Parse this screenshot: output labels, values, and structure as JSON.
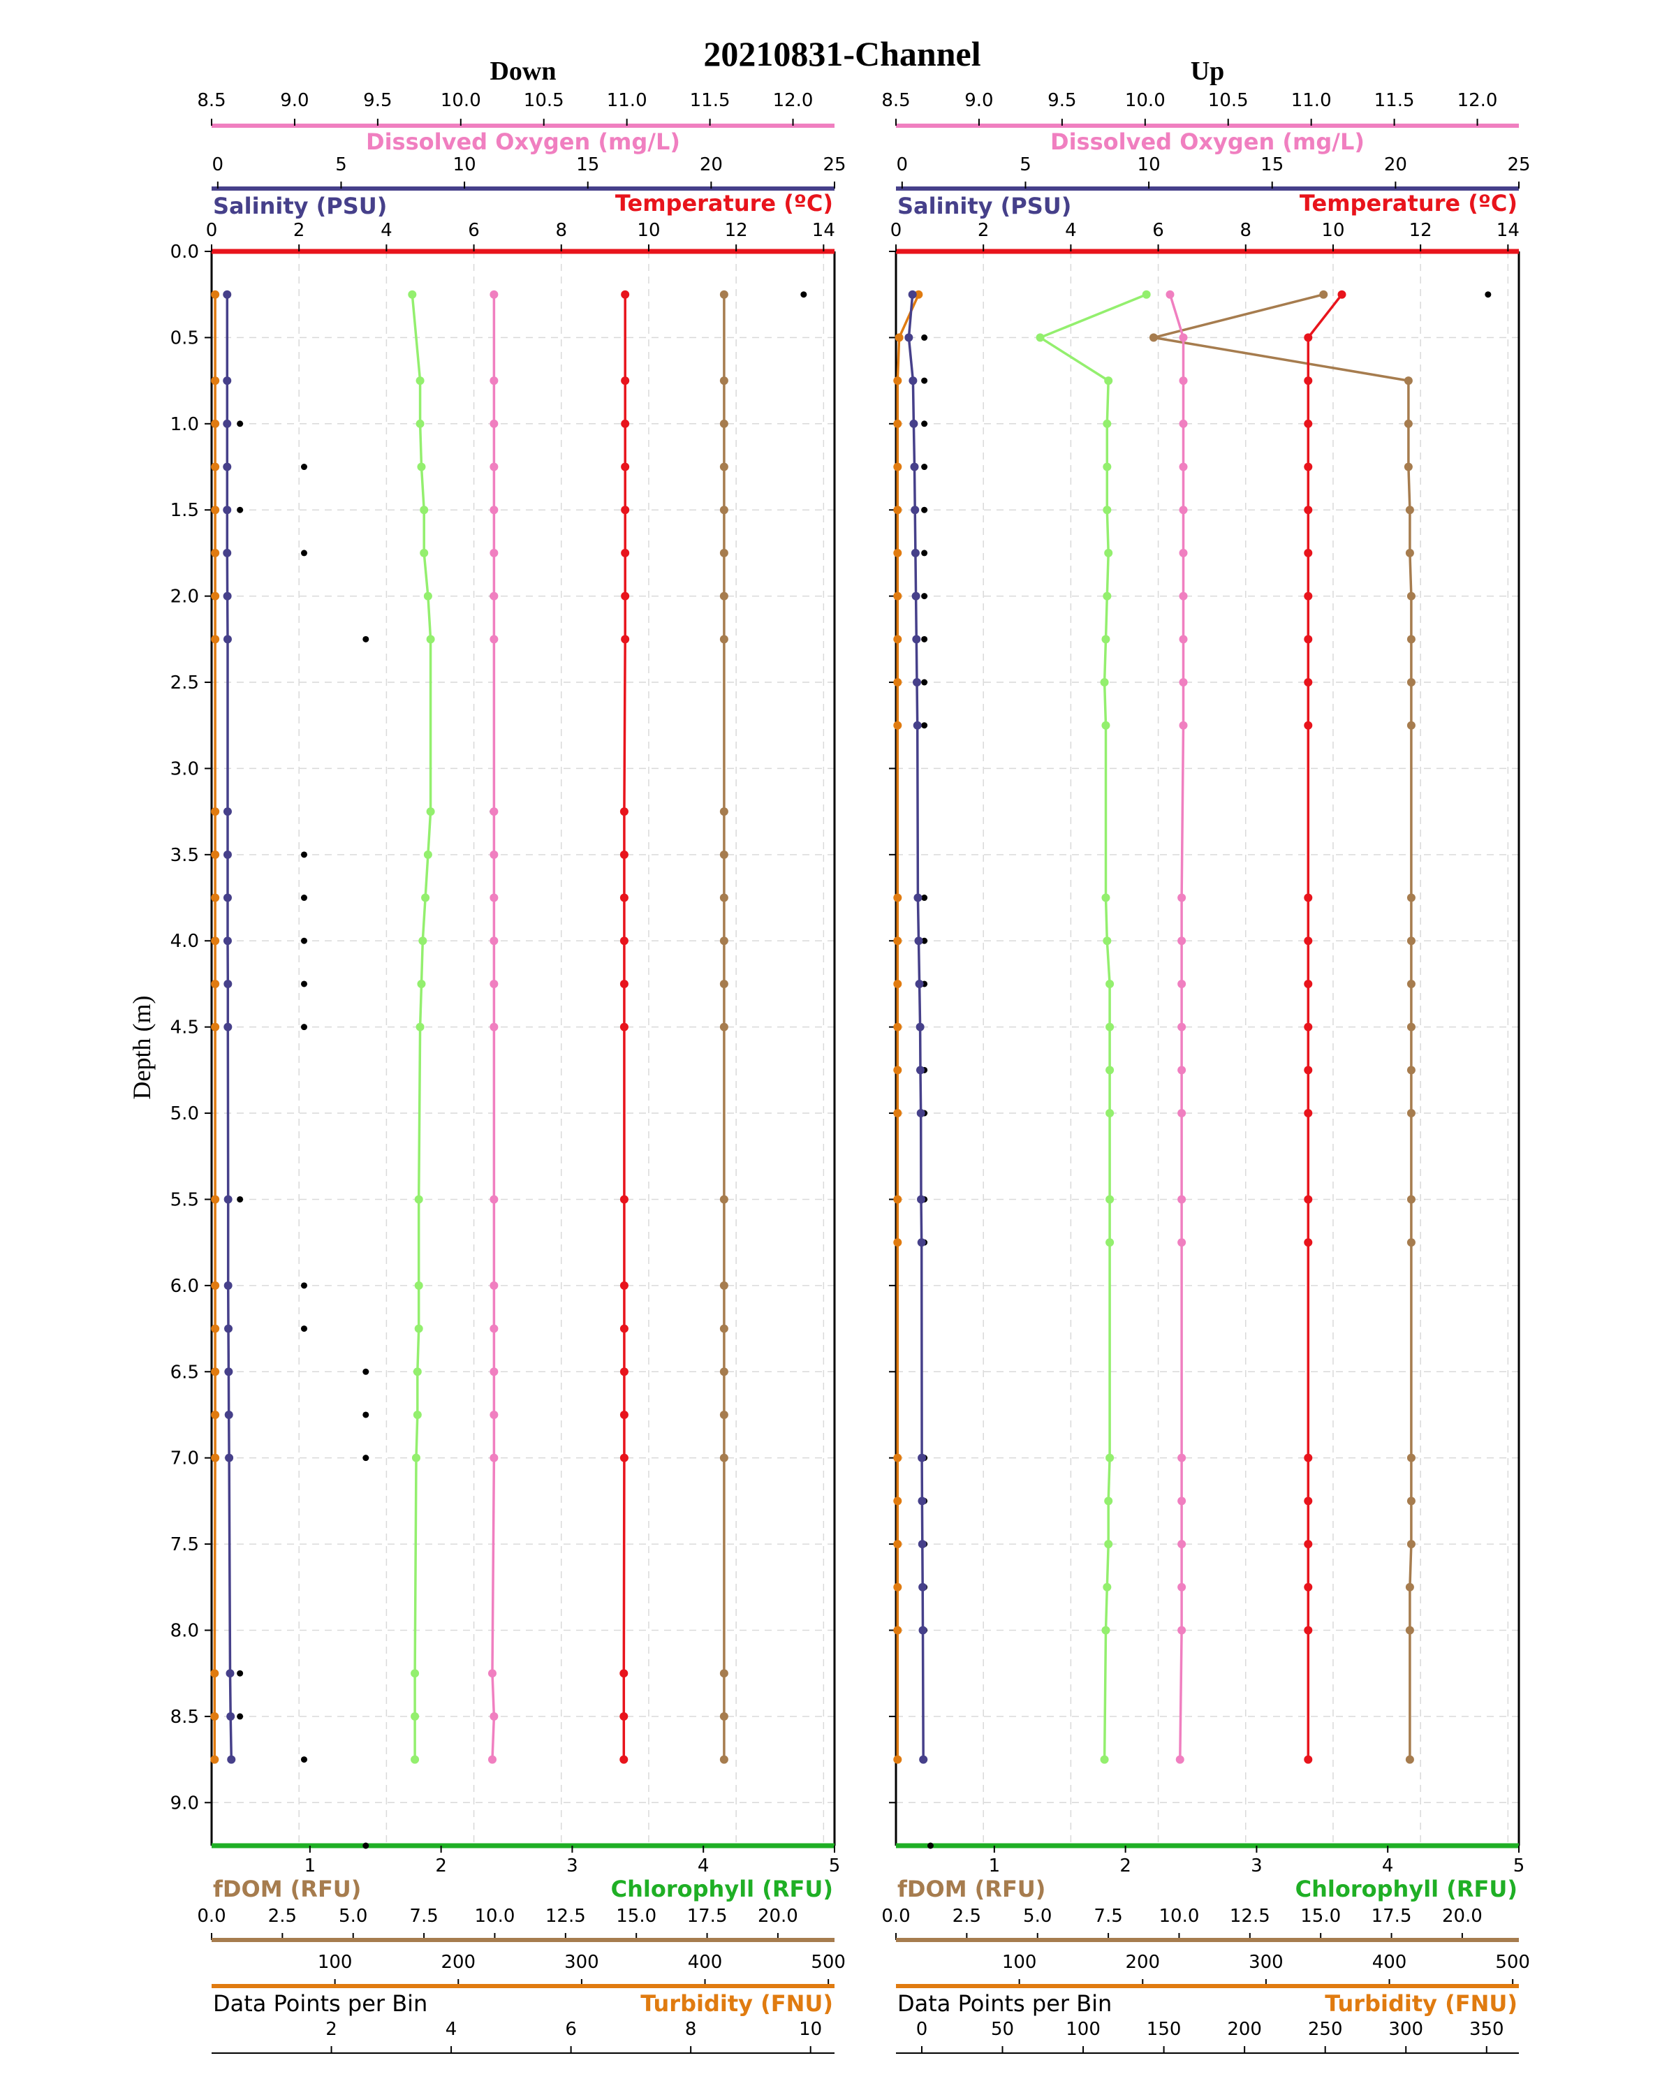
{
  "figure": {
    "title": "20210831-Channel",
    "ylabel": "Depth (m)"
  },
  "colors": {
    "temperature": "#e8141c",
    "salinity": "#46408a",
    "dissolved_oxygen": "#f07fc0",
    "chlorophyll": "#1faf25",
    "chlorophyll_line": "#93ef6e",
    "fdom": "#a67c4e",
    "turbidity": "#e07b10",
    "datapoints": "#000000",
    "grid": "#d9d9d9"
  },
  "chart_data": [
    {
      "type": "line",
      "title": "Down",
      "ylabel": "Depth (m)",
      "ylim": [
        9.25,
        0
      ],
      "yticks": [
        "0.0",
        "0.5",
        "1.0",
        "1.5",
        "2.0",
        "2.5",
        "3.0",
        "3.5",
        "4.0",
        "4.5",
        "5.0",
        "5.5",
        "6.0",
        "6.5",
        "7.0",
        "7.5",
        "8.0",
        "8.5",
        "9.0"
      ],
      "grid": true,
      "axes": {
        "dissolved_oxygen": {
          "label": "Dissolved Oxygen (mg/L)",
          "lim": [
            8.5,
            12.25
          ],
          "ticks": [
            "8.5",
            "9.0",
            "9.5",
            "10.0",
            "10.5",
            "11.0",
            "11.5",
            "12.0"
          ]
        },
        "salinity": {
          "label": "Salinity (PSU)",
          "lim": [
            -0.25,
            25
          ],
          "ticks": [
            "0",
            "5",
            "10",
            "15",
            "20",
            "25"
          ]
        },
        "temperature": {
          "label": "Temperature (ºC)",
          "lim": [
            0,
            14.25
          ],
          "ticks": [
            "0",
            "2",
            "4",
            "6",
            "8",
            "10",
            "12",
            "14"
          ]
        },
        "chlorophyll": {
          "label": "Chlorophyll (RFU)",
          "lim": [
            0.25,
            5
          ],
          "ticks": [
            "1",
            "2",
            "3",
            "4",
            "5"
          ]
        },
        "fdom": {
          "label": "fDOM (RFU)",
          "lim": [
            0,
            22
          ],
          "ticks": [
            "0.0",
            "2.5",
            "5.0",
            "7.5",
            "10.0",
            "12.5",
            "15.0",
            "17.5",
            "20.0"
          ]
        },
        "datapoints": {
          "label": "Data Points per Bin",
          "lim": [
            0,
            505
          ],
          "ticks": [
            "100",
            "200",
            "300",
            "400",
            "500"
          ]
        },
        "turbidity": {
          "label": "Turbidity (FNU)",
          "lim": [
            0,
            10.4
          ],
          "ticks": [
            "2",
            "4",
            "6",
            "8",
            "10"
          ]
        }
      },
      "depths": [
        0.25,
        0.75,
        1.0,
        1.25,
        1.5,
        1.75,
        2.0,
        2.25,
        3.25,
        3.5,
        3.75,
        4.0,
        4.25,
        4.5,
        5.5,
        6.0,
        6.25,
        6.5,
        6.75,
        7.0,
        8.25,
        8.5,
        8.75
      ],
      "series": {
        "temperature": [
          9.46,
          9.46,
          9.46,
          9.46,
          9.46,
          9.46,
          9.46,
          9.46,
          9.44,
          9.44,
          9.44,
          9.44,
          9.44,
          9.44,
          9.44,
          9.44,
          9.44,
          9.44,
          9.44,
          9.44,
          9.43,
          9.43,
          9.43
        ],
        "salinity": [
          0.38,
          0.38,
          0.38,
          0.38,
          0.38,
          0.38,
          0.39,
          0.4,
          0.4,
          0.4,
          0.4,
          0.4,
          0.41,
          0.41,
          0.42,
          0.42,
          0.43,
          0.44,
          0.45,
          0.46,
          0.5,
          0.52,
          0.55
        ],
        "dissolved_oxygen": [
          10.2,
          10.2,
          10.2,
          10.2,
          10.2,
          10.2,
          10.2,
          10.2,
          10.2,
          10.2,
          10.2,
          10.2,
          10.2,
          10.2,
          10.2,
          10.2,
          10.2,
          10.2,
          10.2,
          10.2,
          10.19,
          10.2,
          10.19
        ],
        "chlorophyll": [
          1.78,
          1.84,
          1.84,
          1.85,
          1.87,
          1.87,
          1.9,
          1.92,
          1.92,
          1.9,
          1.88,
          1.86,
          1.85,
          1.84,
          1.83,
          1.83,
          1.83,
          1.82,
          1.82,
          1.81,
          1.8,
          1.8,
          1.8
        ],
        "fdom": [
          18.1,
          18.1,
          18.1,
          18.1,
          18.1,
          18.1,
          18.1,
          18.1,
          18.1,
          18.1,
          18.1,
          18.1,
          18.1,
          18.1,
          18.1,
          18.1,
          18.1,
          18.1,
          18.1,
          18.1,
          18.1,
          18.1,
          18.1
        ],
        "turbidity": [
          0.06,
          0.06,
          0.06,
          0.06,
          0.06,
          0.06,
          0.06,
          0.06,
          0.06,
          0.06,
          0.06,
          0.06,
          0.06,
          0.06,
          0.06,
          0.06,
          0.06,
          0.06,
          0.06,
          0.06,
          0.05,
          0.05,
          0.05
        ]
      },
      "datapoints": {
        "depths": [
          0.25,
          1.0,
          1.25,
          1.5,
          1.75,
          2.0,
          2.25,
          3.25,
          3.5,
          3.75,
          4.0,
          4.25,
          4.5,
          5.5,
          6.0,
          6.25,
          6.5,
          6.75,
          7.0,
          8.25,
          8.5,
          8.75,
          9.25
        ],
        "values": [
          480,
          23,
          75,
          23,
          75,
          228,
          125,
          228,
          75,
          75,
          75,
          75,
          75,
          23,
          75,
          75,
          125,
          125,
          125,
          23,
          23,
          75,
          125
        ]
      }
    },
    {
      "type": "line",
      "title": "Up",
      "ylabel": "Depth (m)",
      "ylim": [
        9.25,
        0
      ],
      "yticks": [
        "0.0",
        "0.5",
        "1.0",
        "1.5",
        "2.0",
        "2.5",
        "3.0",
        "3.5",
        "4.0",
        "4.5",
        "5.0",
        "5.5",
        "6.0",
        "6.5",
        "7.0",
        "7.5",
        "8.0",
        "8.5",
        "9.0"
      ],
      "grid": true,
      "axes": {
        "dissolved_oxygen": {
          "label": "Dissolved Oxygen (mg/L)",
          "lim": [
            8.5,
            12.25
          ],
          "ticks": [
            "8.5",
            "9.0",
            "9.5",
            "10.0",
            "10.5",
            "11.0",
            "11.5",
            "12.0"
          ]
        },
        "salinity": {
          "label": "Salinity (PSU)",
          "lim": [
            -0.25,
            25
          ],
          "ticks": [
            "0",
            "5",
            "10",
            "15",
            "20",
            "25"
          ]
        },
        "temperature": {
          "label": "Temperature (ºC)",
          "lim": [
            0,
            14.25
          ],
          "ticks": [
            "0",
            "2",
            "4",
            "6",
            "8",
            "10",
            "12",
            "14"
          ]
        },
        "chlorophyll": {
          "label": "Chlorophyll (RFU)",
          "lim": [
            0.25,
            5
          ],
          "ticks": [
            "1",
            "2",
            "3",
            "4",
            "5"
          ]
        },
        "fdom": {
          "label": "fDOM (RFU)",
          "lim": [
            0,
            22
          ],
          "ticks": [
            "0.0",
            "2.5",
            "5.0",
            "7.5",
            "10.0",
            "12.5",
            "15.0",
            "17.5",
            "20.0"
          ]
        },
        "datapoints": {
          "label": "Data Points per Bin",
          "lim": [
            0,
            505
          ],
          "ticks": [
            "100",
            "200",
            "300",
            "400",
            "500"
          ]
        },
        "turbidity": {
          "label": "Turbidity (FNU)",
          "lim": [
            -16,
            370
          ],
          "ticks": [
            "0",
            "50",
            "100",
            "150",
            "200",
            "250",
            "300",
            "350"
          ]
        }
      },
      "depths": [
        0.25,
        0.5,
        0.75,
        1.0,
        1.25,
        1.5,
        1.75,
        2.0,
        2.25,
        2.5,
        2.75,
        3.75,
        4.0,
        4.25,
        4.5,
        4.75,
        5.0,
        5.5,
        5.75,
        7.0,
        7.25,
        7.5,
        7.75,
        8.0,
        8.75
      ],
      "series": {
        "temperature": [
          10.2,
          9.43,
          9.43,
          9.43,
          9.43,
          9.43,
          9.43,
          9.43,
          9.43,
          9.43,
          9.43,
          9.43,
          9.43,
          9.43,
          9.43,
          9.43,
          9.43,
          9.43,
          9.43,
          9.43,
          9.43,
          9.43,
          9.43,
          9.43,
          9.43
        ],
        "salinity": [
          0.42,
          0.27,
          0.44,
          0.47,
          0.5,
          0.52,
          0.54,
          0.56,
          0.58,
          0.6,
          0.62,
          0.64,
          0.67,
          0.7,
          0.73,
          0.74,
          0.76,
          0.77,
          0.79,
          0.8,
          0.81,
          0.82,
          0.83,
          0.84,
          0.86
        ],
        "dissolved_oxygen": [
          10.15,
          10.23,
          10.23,
          10.23,
          10.23,
          10.23,
          10.23,
          10.23,
          10.23,
          10.23,
          10.23,
          10.22,
          10.22,
          10.22,
          10.22,
          10.22,
          10.22,
          10.22,
          10.22,
          10.22,
          10.22,
          10.22,
          10.22,
          10.22,
          10.21
        ],
        "chlorophyll": [
          2.16,
          1.35,
          1.87,
          1.86,
          1.86,
          1.86,
          1.87,
          1.86,
          1.85,
          1.84,
          1.85,
          1.85,
          1.86,
          1.88,
          1.88,
          1.88,
          1.88,
          1.88,
          1.88,
          1.88,
          1.87,
          1.87,
          1.86,
          1.85,
          1.84
        ],
        "fdom": [
          15.1,
          9.1,
          18.1,
          18.1,
          18.1,
          18.15,
          18.15,
          18.2,
          18.2,
          18.2,
          18.2,
          18.2,
          18.2,
          18.2,
          18.2,
          18.2,
          18.2,
          18.2,
          18.2,
          18.2,
          18.2,
          18.2,
          18.15,
          18.15,
          18.15
        ],
        "turbidity": [
          -2,
          -14,
          -15,
          -15,
          -15,
          -15,
          -15,
          -15,
          -15,
          -15,
          -15,
          -15,
          -15,
          -15,
          -15,
          -15,
          -15,
          -15,
          -15,
          -15,
          -15,
          -15,
          -15,
          -15,
          -15
        ]
      },
      "datapoints": {
        "depths": [
          0.25,
          0.5,
          0.75,
          1.0,
          1.25,
          1.5,
          1.75,
          2.0,
          2.25,
          2.5,
          2.75,
          3.75,
          4.0,
          4.25,
          4.75,
          5.0,
          5.5,
          5.75,
          7.0,
          7.25,
          7.5,
          7.75,
          8.0,
          8.75,
          9.25
        ],
        "values": [
          480,
          23,
          23,
          23,
          23,
          23,
          23,
          23,
          23,
          23,
          23,
          23,
          23,
          23,
          23,
          23,
          23,
          23,
          23,
          23,
          23,
          23,
          23,
          23,
          28
        ]
      }
    }
  ]
}
